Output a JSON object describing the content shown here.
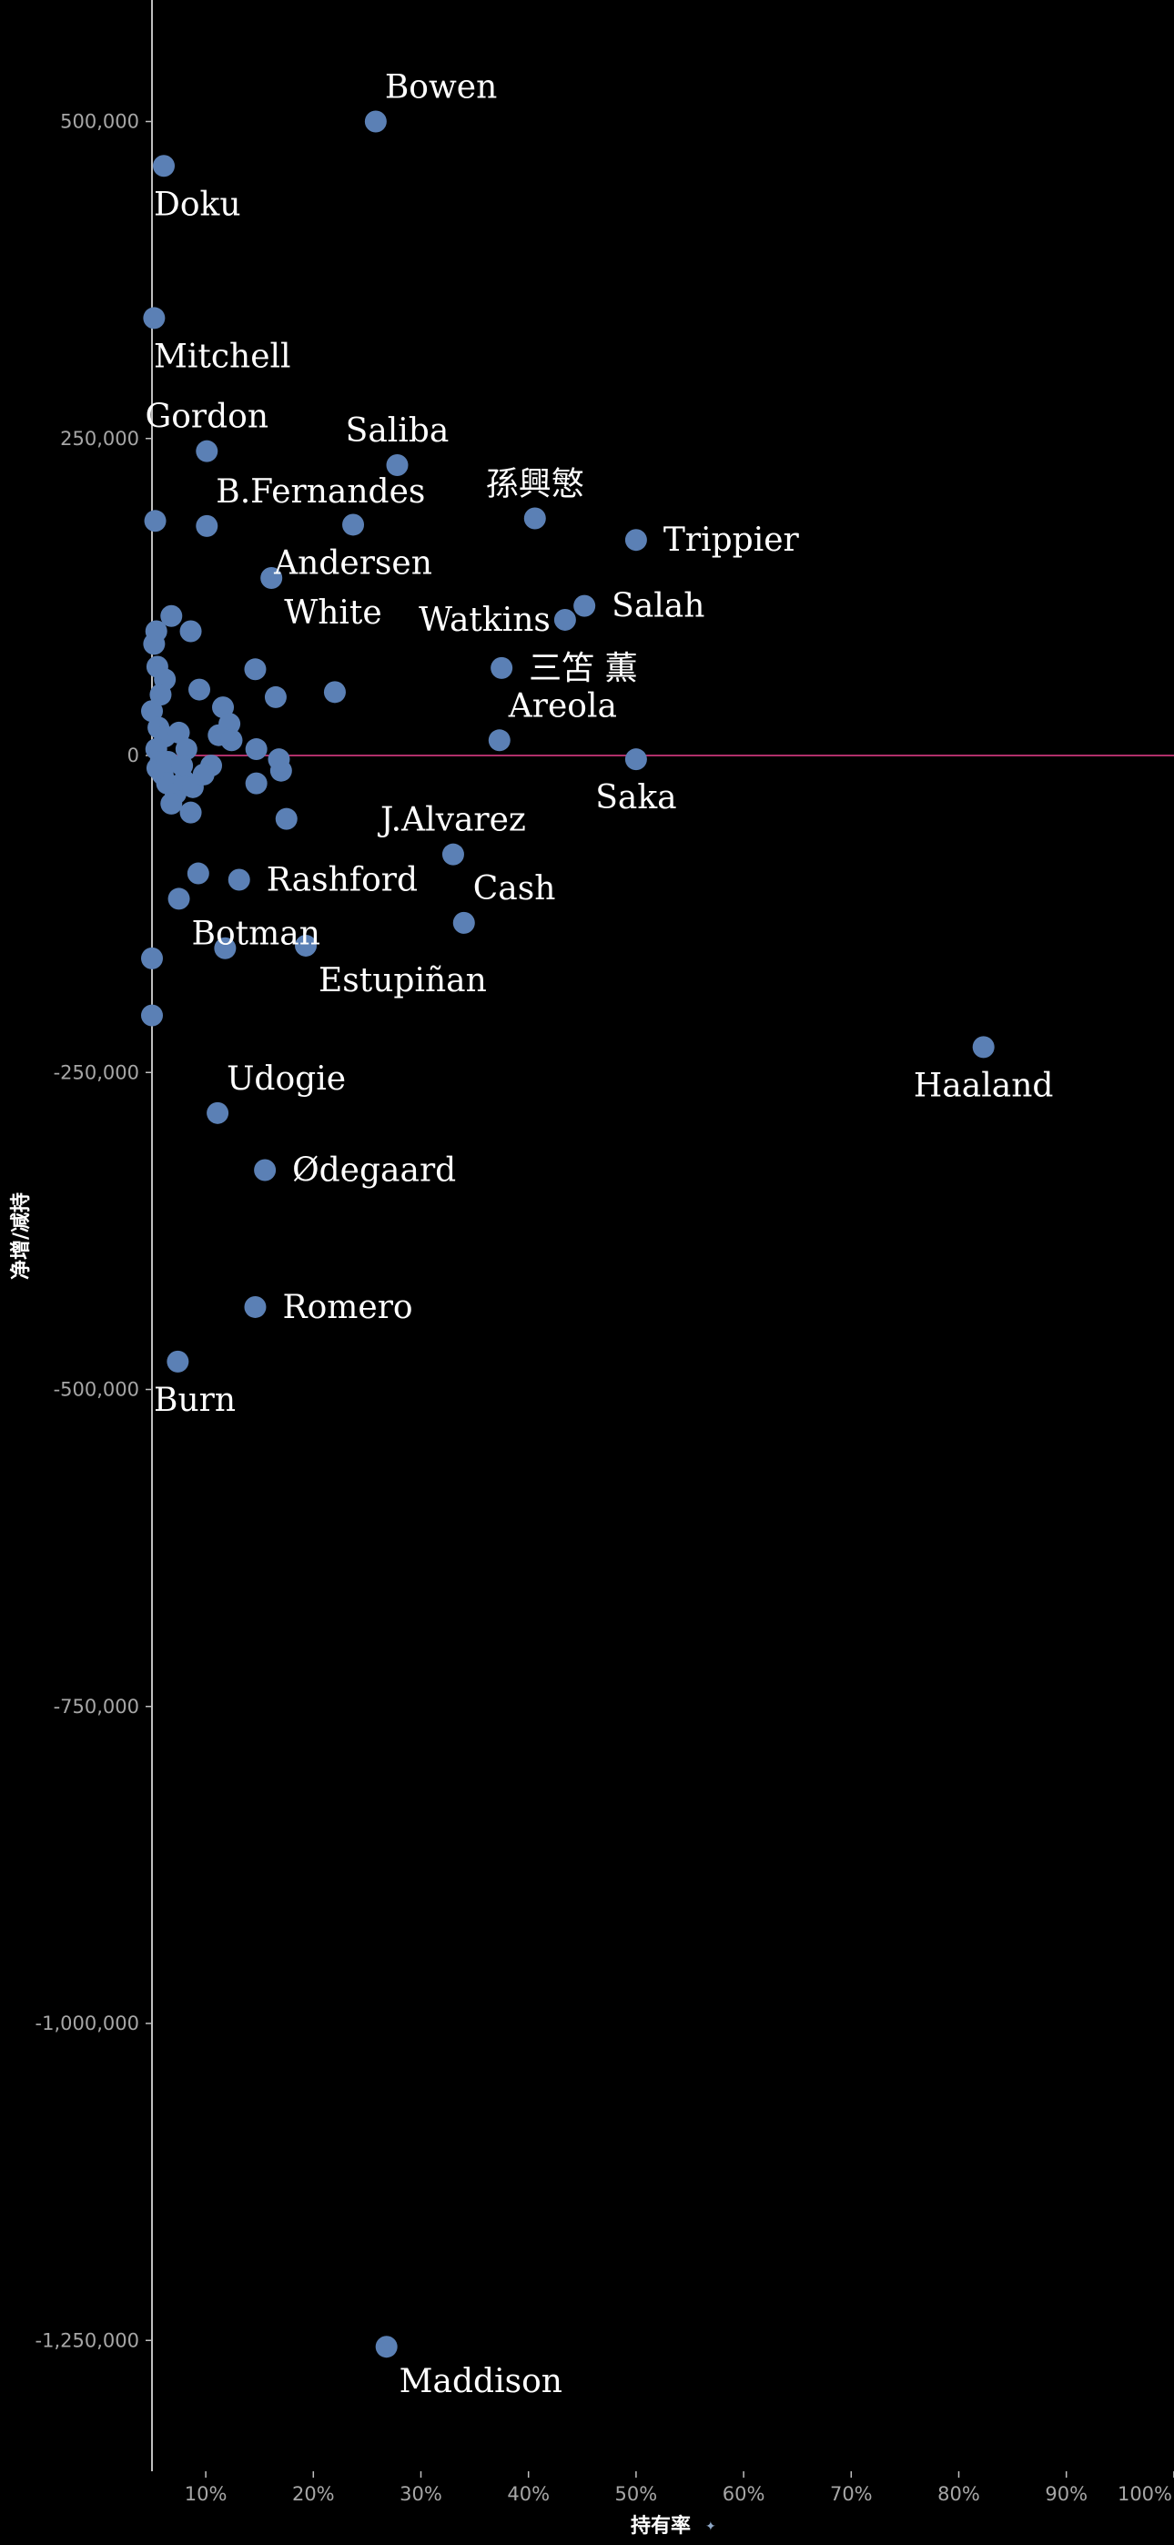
{
  "chart_data": {
    "type": "scatter",
    "title": "",
    "xlabel": "持有率",
    "xlabel_icon": "pin-icon",
    "ylabel": "净增/减持",
    "xlim": [
      0.05,
      1.0
    ],
    "ylim": [
      -1350000,
      560000
    ],
    "x_ticks": [
      0.1,
      0.2,
      0.3,
      0.4,
      0.5,
      0.6,
      0.7,
      0.8,
      0.9,
      1.0
    ],
    "x_tick_labels": [
      "10%",
      "20%",
      "30%",
      "40%",
      "50%",
      "60%",
      "70%",
      "80%",
      "90%",
      "100%"
    ],
    "y_ticks": [
      500000,
      250000,
      0,
      -250000,
      -500000,
      -750000,
      -1000000,
      -1250000
    ],
    "y_tick_labels": [
      "500,000",
      "250,000",
      "0",
      "-250,000",
      "-500,000",
      "-750,000",
      "-1,000,000",
      "-1,250,000"
    ],
    "grid": false,
    "colors": {
      "background": "#000000",
      "point": "#5b80b5",
      "zero_line": "#b0306a",
      "axis": "#bfbfbf",
      "tick_text": "#a6a6a6",
      "label_text": "#ffffff"
    },
    "labeled_points": [
      {
        "name": "Bowen",
        "x": 0.258,
        "y": 500000,
        "label_pos": "above-right"
      },
      {
        "name": "Doku",
        "x": 0.061,
        "y": 465000,
        "label_pos": "below"
      },
      {
        "name": "Mitchell",
        "x": 0.052,
        "y": 345000,
        "label_pos": "below"
      },
      {
        "name": "Gordon",
        "x": 0.101,
        "y": 240000,
        "label_pos": "above"
      },
      {
        "name": "Saliba",
        "x": 0.278,
        "y": 229000,
        "label_pos": "above"
      },
      {
        "name": "孫興慜",
        "x": 0.406,
        "y": 187000,
        "label_pos": "above"
      },
      {
        "name": "Trippier",
        "x": 0.5,
        "y": 170000,
        "label_pos": "right"
      },
      {
        "name": "B.Fernandes",
        "x": 0.101,
        "y": 181000,
        "label_pos": "above-right"
      },
      {
        "name": "Andersen",
        "x": 0.237,
        "y": 182000,
        "label_pos": "below"
      },
      {
        "name": "White",
        "x": 0.161,
        "y": 140000,
        "label_pos": "below-right"
      },
      {
        "name": "Watkins",
        "x": 0.434,
        "y": 107000,
        "label_pos": "left"
      },
      {
        "name": "Salah",
        "x": 0.452,
        "y": 118000,
        "label_pos": "right"
      },
      {
        "name": "三笘 薫",
        "x": 0.375,
        "y": 69000,
        "label_pos": "right"
      },
      {
        "name": "Areola",
        "x": 0.373,
        "y": 12000,
        "label_pos": "above-right"
      },
      {
        "name": "Saka",
        "x": 0.5,
        "y": -3000,
        "label_pos": "below"
      },
      {
        "name": "J.Alvarez",
        "x": 0.33,
        "y": -78000,
        "label_pos": "above"
      },
      {
        "name": "Cash",
        "x": 0.34,
        "y": -132000,
        "label_pos": "above-right"
      },
      {
        "name": "Rashford",
        "x": 0.131,
        "y": -98000,
        "label_pos": "right"
      },
      {
        "name": "Botman",
        "x": 0.075,
        "y": -113000,
        "label_pos": "below-right"
      },
      {
        "name": "Estupiñan",
        "x": 0.193,
        "y": -150000,
        "label_pos": "below-right"
      },
      {
        "name": "Haaland",
        "x": 0.823,
        "y": -230000,
        "label_pos": "below"
      },
      {
        "name": "Udogie",
        "x": 0.111,
        "y": -282000,
        "label_pos": "above-right"
      },
      {
        "name": "Ødegaard",
        "x": 0.155,
        "y": -327000,
        "label_pos": "right"
      },
      {
        "name": "Romero",
        "x": 0.146,
        "y": -435000,
        "label_pos": "right"
      },
      {
        "name": "Burn",
        "x": 0.074,
        "y": -478000,
        "label_pos": "below"
      },
      {
        "name": "Maddison",
        "x": 0.268,
        "y": -1255000,
        "label_pos": "below-right"
      }
    ],
    "other_points": [
      {
        "x": 0.053,
        "y": 185000
      },
      {
        "x": 0.068,
        "y": 110000
      },
      {
        "x": 0.086,
        "y": 98000
      },
      {
        "x": 0.052,
        "y": 88000
      },
      {
        "x": 0.054,
        "y": 98000
      },
      {
        "x": 0.146,
        "y": 68000
      },
      {
        "x": 0.055,
        "y": 70000
      },
      {
        "x": 0.062,
        "y": 60000
      },
      {
        "x": 0.058,
        "y": 48000
      },
      {
        "x": 0.094,
        "y": 52000
      },
      {
        "x": 0.116,
        "y": 38000
      },
      {
        "x": 0.165,
        "y": 46000
      },
      {
        "x": 0.22,
        "y": 50000
      },
      {
        "x": 0.122,
        "y": 25000
      },
      {
        "x": 0.112,
        "y": 16000
      },
      {
        "x": 0.124,
        "y": 12000
      },
      {
        "x": 0.05,
        "y": 35000
      },
      {
        "x": 0.056,
        "y": 22000
      },
      {
        "x": 0.062,
        "y": 15000
      },
      {
        "x": 0.075,
        "y": 18000
      },
      {
        "x": 0.082,
        "y": 5000
      },
      {
        "x": 0.147,
        "y": 5000
      },
      {
        "x": 0.168,
        "y": -3000
      },
      {
        "x": 0.105,
        "y": -8000
      },
      {
        "x": 0.17,
        "y": -12000
      },
      {
        "x": 0.054,
        "y": 5000
      },
      {
        "x": 0.058,
        "y": -5000
      },
      {
        "x": 0.06,
        "y": -15000
      },
      {
        "x": 0.064,
        "y": -22000
      },
      {
        "x": 0.072,
        "y": -30000
      },
      {
        "x": 0.08,
        "y": -20000
      },
      {
        "x": 0.088,
        "y": -25000
      },
      {
        "x": 0.098,
        "y": -15000
      },
      {
        "x": 0.068,
        "y": -38000
      },
      {
        "x": 0.086,
        "y": -45000
      },
      {
        "x": 0.147,
        "y": -22000
      },
      {
        "x": 0.175,
        "y": -50000
      },
      {
        "x": 0.093,
        "y": -93000
      },
      {
        "x": 0.118,
        "y": -152000
      },
      {
        "x": 0.05,
        "y": -160000
      },
      {
        "x": 0.05,
        "y": -205000
      },
      {
        "x": 0.055,
        "y": -10000
      },
      {
        "x": 0.065,
        "y": -5000
      },
      {
        "x": 0.078,
        "y": -8000
      }
    ]
  }
}
